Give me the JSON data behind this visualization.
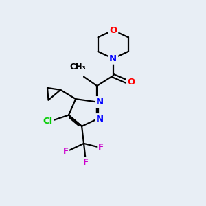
{
  "bg_color": "#e8eef5",
  "bond_color": "#000000",
  "bond_width": 1.6,
  "atom_colors": {
    "O": "#ff0000",
    "N": "#0000ff",
    "Cl": "#00cc00",
    "F": "#cc00cc",
    "C": "#000000"
  },
  "font_size_atom": 9.5,
  "font_size_small": 8.5
}
